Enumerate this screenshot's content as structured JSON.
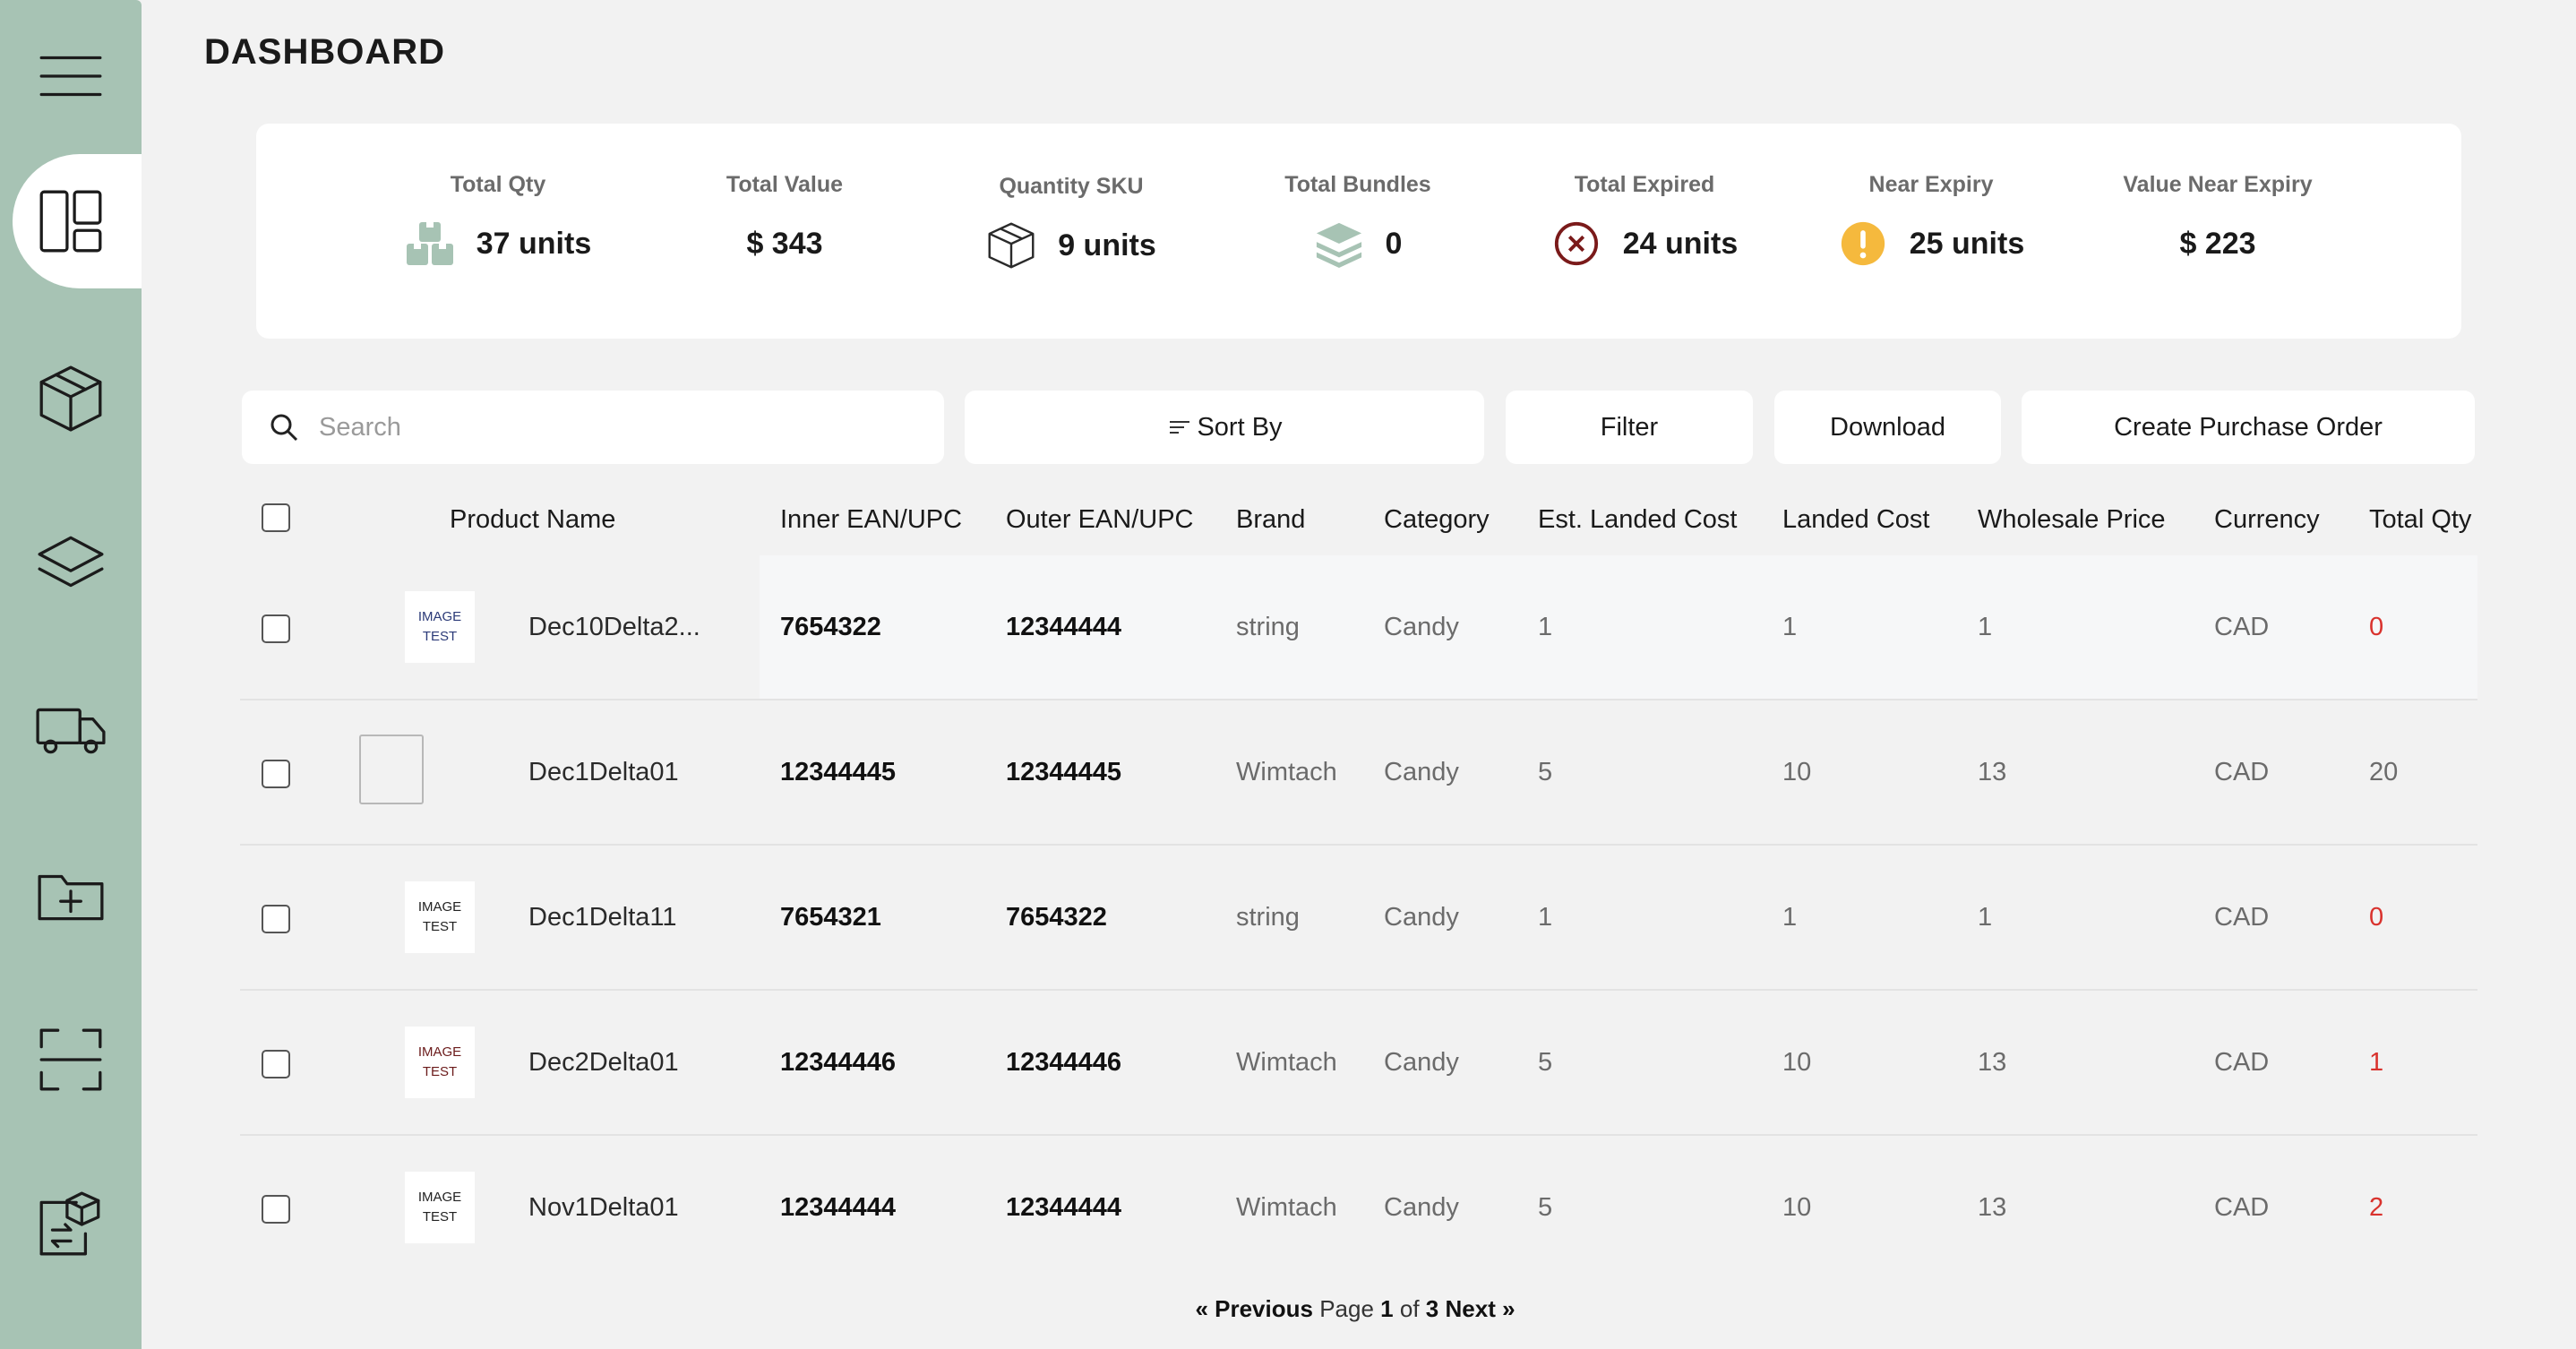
{
  "page": {
    "title": "DASHBOARD"
  },
  "sidebar": {
    "items": [
      {
        "name": "menu-icon"
      },
      {
        "name": "dashboard-icon",
        "active": true
      },
      {
        "name": "box-icon"
      },
      {
        "name": "layers-icon"
      },
      {
        "name": "truck-icon"
      },
      {
        "name": "folder-add-icon"
      },
      {
        "name": "scan-icon"
      },
      {
        "name": "document-exchange-icon"
      }
    ]
  },
  "summary": {
    "total_qty": {
      "label": "Total Qty",
      "value": "37 units",
      "icon": "boxes-stack-icon"
    },
    "total_value": {
      "label": "Total Value",
      "value": "$ 343"
    },
    "quantity_sku": {
      "label": "Quantity SKU",
      "value": "9 units",
      "icon": "box-icon"
    },
    "total_bundles": {
      "label": "Total Bundles",
      "value": "0",
      "icon": "layers-icon"
    },
    "total_expired": {
      "label": "Total Expired",
      "value": "24 units",
      "icon": "x-circle-icon"
    },
    "near_expiry": {
      "label": "Near Expiry",
      "value": "25 units",
      "icon": "warning-icon"
    },
    "value_near_expiry": {
      "label": "Value Near Expiry",
      "value": "$ 223"
    }
  },
  "toolbar": {
    "search_placeholder": "Search",
    "sort_label": "Sort By",
    "filter_label": "Filter",
    "download_label": "Download",
    "create_po_label": "Create Purchase Order"
  },
  "table": {
    "columns": [
      "Product Name",
      "Inner EAN/UPC",
      "Outer EAN/UPC",
      "Brand",
      "Category",
      "Est. Landed Cost",
      "Landed Cost",
      "Wholesale Price",
      "Currency",
      "Total Qty"
    ],
    "thumb_text": [
      "IMAGE",
      "TEST"
    ],
    "rows": [
      {
        "name": "Dec10Delta2...",
        "inner": "7654322",
        "outer": "12344444",
        "brand": "string",
        "category": "Candy",
        "est": "1",
        "landed": "1",
        "wholesale": "1",
        "currency": "CAD",
        "qty": "0"
      },
      {
        "name": "Dec1Delta01",
        "inner": "12344445",
        "outer": "12344445",
        "brand": "Wimtach",
        "category": "Candy",
        "est": "5",
        "landed": "10",
        "wholesale": "13",
        "currency": "CAD",
        "qty": "20"
      },
      {
        "name": "Dec1Delta11",
        "inner": "7654321",
        "outer": "7654322",
        "brand": "string",
        "category": "Candy",
        "est": "1",
        "landed": "1",
        "wholesale": "1",
        "currency": "CAD",
        "qty": "0"
      },
      {
        "name": "Dec2Delta01",
        "inner": "12344446",
        "outer": "12344446",
        "brand": "Wimtach",
        "category": "Candy",
        "est": "5",
        "landed": "10",
        "wholesale": "13",
        "currency": "CAD",
        "qty": "1"
      },
      {
        "name": "Nov1Delta01",
        "inner": "12344444",
        "outer": "12344444",
        "brand": "Wimtach",
        "category": "Candy",
        "est": "5",
        "landed": "10",
        "wholesale": "13",
        "currency": "CAD",
        "qty": "2"
      }
    ]
  },
  "pager": {
    "prev": "« Previous",
    "page_word": "Page",
    "current": "1",
    "of_word": "of",
    "total": "3",
    "next": "Next »"
  }
}
